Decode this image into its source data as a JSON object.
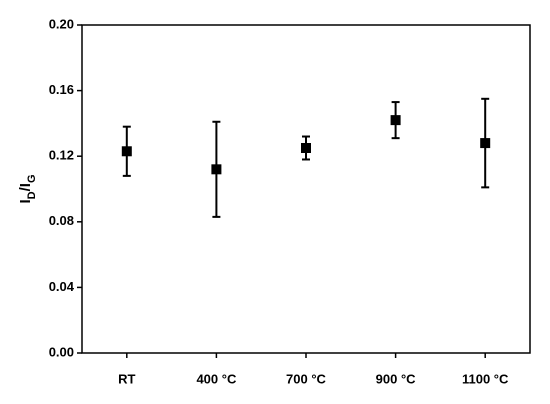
{
  "chart_data": {
    "type": "scatter",
    "ylabel": [
      "I",
      "D",
      "/I",
      "G"
    ],
    "categories": [
      "RT",
      "400 °C",
      "700 °C",
      "900 °C",
      "1100 °C"
    ],
    "values": [
      0.123,
      0.112,
      0.125,
      0.142,
      0.128
    ],
    "errors": [
      0.015,
      0.029,
      0.007,
      0.011,
      0.027
    ],
    "color": "#000000",
    "ylim": [
      0,
      0.2
    ],
    "yticks": [
      {
        "value": 0,
        "label": "0.00"
      },
      {
        "value": 0.04,
        "label": "0.04"
      },
      {
        "value": 0.08,
        "label": "0.08"
      },
      {
        "value": 0.12,
        "label": "0.12"
      },
      {
        "value": 0.16,
        "label": "0.16"
      },
      {
        "value": 0.2,
        "label": "0.20"
      }
    ],
    "grid": false
  }
}
